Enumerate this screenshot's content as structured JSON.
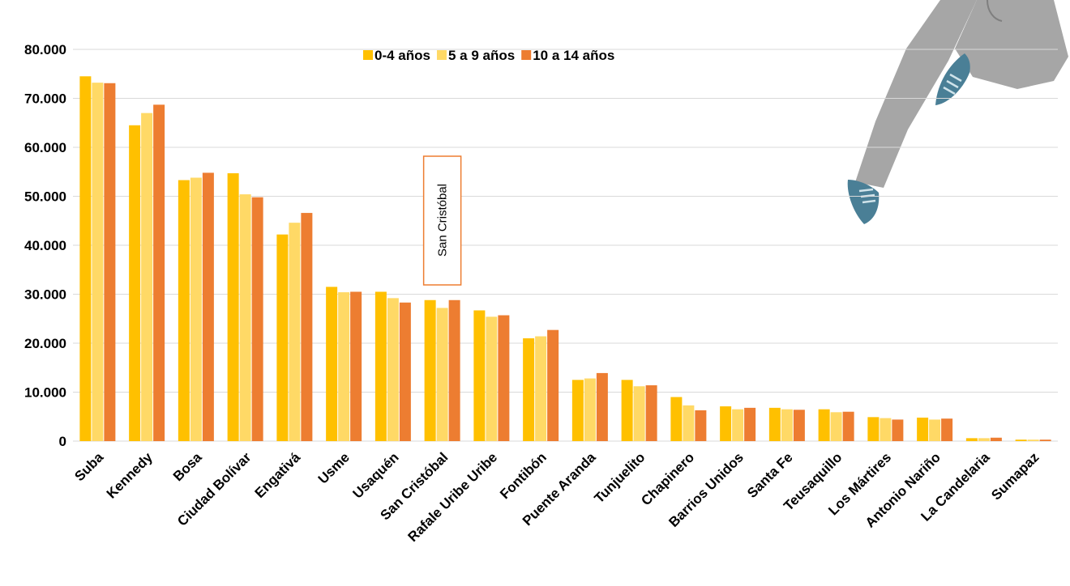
{
  "chart_data": {
    "type": "bar",
    "title": "",
    "xlabel": "",
    "ylabel": "",
    "ylim": [
      0,
      80000
    ],
    "yticks": [
      0,
      10000,
      20000,
      30000,
      40000,
      50000,
      60000,
      70000,
      80000
    ],
    "ytick_labels": [
      "0",
      "10.000",
      "20.000",
      "30.000",
      "40.000",
      "50.000",
      "60.000",
      "70.000",
      "80.000"
    ],
    "grid": true,
    "legend_position": "top-center",
    "categories": [
      "Suba",
      "Kennedy",
      "Bosa",
      "Ciudad Bolívar",
      "Engativá",
      "Usme",
      "Usaquén",
      "San Cristóbal",
      "Rafale Uribe Uribe",
      "Fontibón",
      "Puente  Aranda",
      "Tunjuelito",
      "Chapinero",
      "Barrios Unidos",
      "Santa Fe",
      "Teusaquillo",
      "Los Mártires",
      "Antonio Nariño",
      "La Candelaria",
      "Sumapaz"
    ],
    "series": [
      {
        "name": "0-4 años",
        "color": "#FFC000",
        "values": [
          74500,
          64500,
          53300,
          54700,
          42200,
          31500,
          30500,
          28800,
          26700,
          21000,
          12500,
          12500,
          9000,
          7100,
          6800,
          6500,
          4900,
          4800,
          600,
          300
        ]
      },
      {
        "name": "5 a 9 años",
        "color": "#FFD966",
        "values": [
          73200,
          67000,
          53800,
          50400,
          44600,
          30400,
          29200,
          27200,
          25400,
          21400,
          12800,
          11200,
          7300,
          6500,
          6500,
          5900,
          4700,
          4400,
          600,
          300
        ]
      },
      {
        "name": "10 a 14 años",
        "color": "#ED7D31",
        "values": [
          73100,
          68700,
          54800,
          49800,
          46600,
          30500,
          28300,
          28800,
          25700,
          22700,
          13900,
          11400,
          6300,
          6800,
          6400,
          6000,
          4400,
          4600,
          700,
          300
        ]
      }
    ],
    "annotations": [
      {
        "text": "San Cristóbal",
        "category": "San Cristóbal"
      }
    ]
  },
  "colors": {
    "gridline": "#d9d9d9",
    "text": "#000000",
    "annotation_border": "#ED7D31",
    "figure_gray": "#a6a6a6",
    "shoe_blue": "#4a7f96"
  },
  "icons": {
    "illustration": "running-person-legs-illustration"
  }
}
